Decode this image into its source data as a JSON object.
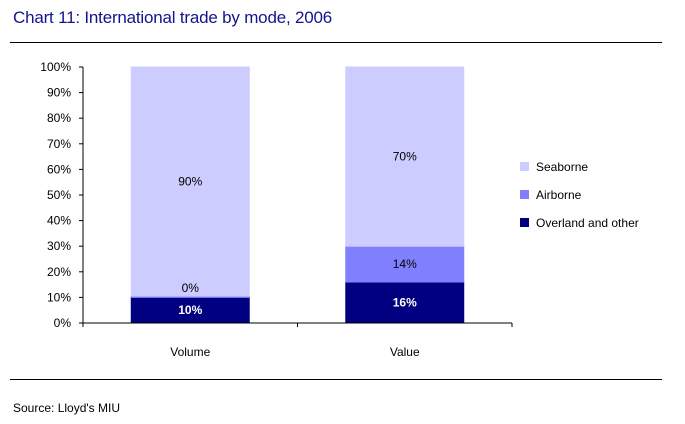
{
  "header": {
    "title": "Chart 11: International trade by mode, 2006"
  },
  "footer": {
    "source": "Source: Lloyd's MIU"
  },
  "chart_data": {
    "type": "bar",
    "stacked": true,
    "percent": true,
    "title": "Chart 11: International trade by mode, 2006",
    "xlabel": "",
    "ylabel": "",
    "ylim": [
      0,
      100
    ],
    "y_ticks": [
      "0%",
      "10%",
      "20%",
      "30%",
      "40%",
      "50%",
      "60%",
      "70%",
      "80%",
      "90%",
      "100%"
    ],
    "categories": [
      "Volume",
      "Value"
    ],
    "series": [
      {
        "name": "Overland and other",
        "values": [
          10,
          16
        ],
        "labels": [
          "10%",
          "16%"
        ],
        "color": "#000080",
        "label_color": "#ffffff"
      },
      {
        "name": "Airborne",
        "values": [
          0.5,
          14
        ],
        "labels": [
          "0%",
          "14%"
        ],
        "color": "#8080ff",
        "label_color": "#000000"
      },
      {
        "name": "Seaborne",
        "values": [
          89.5,
          70
        ],
        "labels": [
          "90%",
          "70%"
        ],
        "color": "#ccccff",
        "label_color": "#000000"
      }
    ],
    "legend_position": "right",
    "legend_order": [
      "Seaborne",
      "Airborne",
      "Overland and other"
    ],
    "grid": false,
    "colors": {
      "title": "#14148c",
      "axis": "#000000"
    }
  }
}
